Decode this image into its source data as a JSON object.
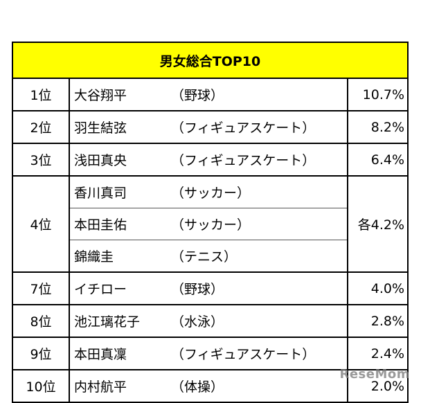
{
  "table": {
    "title": "男女総合TOP10",
    "rows": [
      {
        "rank": "1位",
        "name": "大谷翔平",
        "sport": "（野球）",
        "pct": "10.7%"
      },
      {
        "rank": "2位",
        "name": "羽生結弦",
        "sport": "（フィギュアスケート）",
        "pct": "8.2%"
      },
      {
        "rank": "3位",
        "name": "浅田真央",
        "sport": "（フィギュアスケート）",
        "pct": "6.4%"
      },
      {
        "rank": "4位",
        "pct": "各4.2%",
        "members": [
          {
            "name": "香川真司",
            "sport": "（サッカー）"
          },
          {
            "name": "本田圭佑",
            "sport": "（サッカー）"
          },
          {
            "name": "錦織圭",
            "sport": "（テニス）"
          }
        ]
      },
      {
        "rank": "7位",
        "name": "イチロー",
        "sport": "（野球）",
        "pct": "4.0%"
      },
      {
        "rank": "8位",
        "name": "池江璃花子",
        "sport": "（水泳）",
        "pct": "2.8%"
      },
      {
        "rank": "9位",
        "name": "本田真凜",
        "sport": "（フィギュアスケート）",
        "pct": "2.4%"
      },
      {
        "rank": "10位",
        "name": "内村航平",
        "sport": "（体操）",
        "pct": "2.0%"
      }
    ]
  },
  "watermark": "ReseMom"
}
